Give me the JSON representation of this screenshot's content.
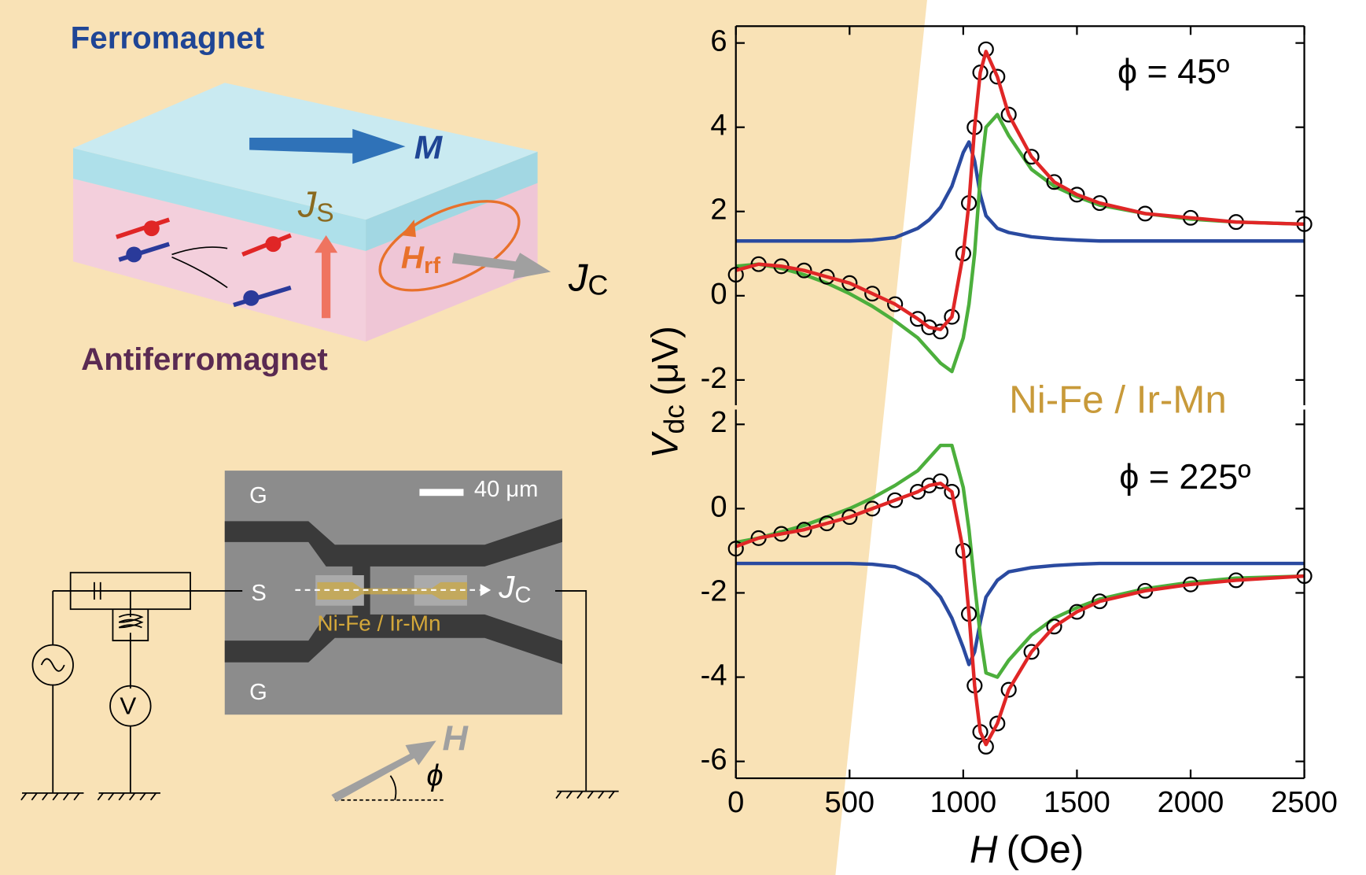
{
  "diagram": {
    "ferromagnet": "Ferromagnet",
    "m": "M",
    "js": {
      "main": "J",
      "sub": "S"
    },
    "hrf": {
      "main": "H",
      "sub": "rf"
    },
    "jc": {
      "main": "J",
      "sub": "C"
    },
    "antiferromagnet": "Antiferromagnet",
    "sem": {
      "g_top": "G",
      "s": "S",
      "g_bottom": "G",
      "scale": "40 μm",
      "jc": {
        "main": "J",
        "sub": "C"
      },
      "sample": "Ni-Fe / Ir-Mn"
    },
    "voltmeter": "V",
    "field": "H",
    "angle": "ϕ"
  },
  "sample_label": "Ni-Fe / Ir-Mn",
  "chart_data": [
    {
      "type": "line",
      "annotation": "ϕ = 45º",
      "ylabel": {
        "symbol": "V",
        "sub": "dc",
        "unit": "(μV)"
      },
      "xlim": [
        0,
        2500
      ],
      "ylim": [
        -2.6,
        6.4
      ],
      "yticks": [
        -2,
        0,
        2,
        4,
        6
      ],
      "x": [
        0,
        100,
        200,
        300,
        400,
        500,
        600,
        700,
        800,
        850,
        900,
        950,
        1000,
        1025,
        1050,
        1075,
        1100,
        1150,
        1200,
        1300,
        1400,
        1500,
        1600,
        1800,
        2000,
        2200,
        2500
      ],
      "series": [
        {
          "color": "#2a4aa0",
          "values": [
            1.3,
            1.3,
            1.3,
            1.3,
            1.3,
            1.3,
            1.32,
            1.38,
            1.6,
            1.8,
            2.1,
            2.6,
            3.4,
            3.65,
            3.2,
            2.4,
            1.9,
            1.6,
            1.5,
            1.4,
            1.35,
            1.32,
            1.3,
            1.3,
            1.3,
            1.3,
            1.3
          ]
        },
        {
          "color": "#4caf3c",
          "values": [
            0.7,
            0.75,
            0.65,
            0.5,
            0.3,
            0.05,
            -0.25,
            -0.6,
            -1.0,
            -1.3,
            -1.6,
            -1.8,
            -1.0,
            -0.2,
            1.0,
            2.8,
            4.0,
            4.3,
            3.8,
            3.0,
            2.6,
            2.35,
            2.15,
            1.95,
            1.82,
            1.75,
            1.7
          ]
        },
        {
          "color": "#000000",
          "marker": "circle",
          "values": [
            0.5,
            0.75,
            0.7,
            0.6,
            0.45,
            0.3,
            0.05,
            -0.2,
            -0.55,
            -0.75,
            -0.85,
            -0.5,
            1.0,
            2.2,
            4.0,
            5.3,
            5.85,
            5.2,
            4.3,
            3.3,
            2.7,
            2.4,
            2.2,
            1.95,
            1.85,
            1.75,
            1.7
          ]
        },
        {
          "color": "#e02626",
          "values": [
            0.6,
            0.75,
            0.7,
            0.6,
            0.45,
            0.3,
            0.05,
            -0.2,
            -0.55,
            -0.75,
            -0.8,
            -0.5,
            1.0,
            2.2,
            4.0,
            5.3,
            5.8,
            5.2,
            4.3,
            3.3,
            2.7,
            2.4,
            2.2,
            1.95,
            1.85,
            1.75,
            1.7
          ]
        }
      ]
    },
    {
      "type": "line",
      "annotation": "ϕ = 225º",
      "xlabel": {
        "symbol": "H",
        "unit": "(Oe)"
      },
      "xlim": [
        0,
        2500
      ],
      "xticks": [
        0,
        500,
        1000,
        1500,
        2000,
        2500
      ],
      "ylim": [
        -6.4,
        2.35
      ],
      "yticks": [
        -6,
        -4,
        -2,
        0,
        2
      ],
      "x": [
        0,
        100,
        200,
        300,
        400,
        500,
        600,
        700,
        800,
        850,
        900,
        950,
        1000,
        1025,
        1050,
        1075,
        1100,
        1150,
        1200,
        1300,
        1400,
        1500,
        1600,
        1800,
        2000,
        2200,
        2500
      ],
      "series": [
        {
          "color": "#2a4aa0",
          "values": [
            -1.3,
            -1.3,
            -1.3,
            -1.3,
            -1.3,
            -1.3,
            -1.32,
            -1.38,
            -1.6,
            -1.8,
            -2.1,
            -2.6,
            -3.3,
            -3.7,
            -3.4,
            -2.7,
            -2.1,
            -1.7,
            -1.5,
            -1.4,
            -1.35,
            -1.32,
            -1.3,
            -1.3,
            -1.3,
            -1.3,
            -1.3
          ]
        },
        {
          "color": "#4caf3c",
          "values": [
            -0.8,
            -0.7,
            -0.55,
            -0.4,
            -0.2,
            0.0,
            0.25,
            0.55,
            0.9,
            1.2,
            1.5,
            1.5,
            0.5,
            -0.5,
            -1.8,
            -3.0,
            -3.9,
            -4.0,
            -3.6,
            -3.0,
            -2.6,
            -2.35,
            -2.15,
            -1.9,
            -1.75,
            -1.65,
            -1.6
          ]
        },
        {
          "color": "#000000",
          "marker": "circle",
          "values": [
            -0.95,
            -0.7,
            -0.6,
            -0.5,
            -0.35,
            -0.2,
            0.0,
            0.2,
            0.4,
            0.55,
            0.65,
            0.4,
            -1.0,
            -2.5,
            -4.2,
            -5.3,
            -5.65,
            -5.1,
            -4.3,
            -3.4,
            -2.8,
            -2.45,
            -2.2,
            -1.95,
            -1.8,
            -1.7,
            -1.6
          ]
        },
        {
          "color": "#e02626",
          "values": [
            -0.9,
            -0.7,
            -0.6,
            -0.5,
            -0.35,
            -0.2,
            0.0,
            0.2,
            0.4,
            0.55,
            0.6,
            0.4,
            -1.0,
            -2.5,
            -4.2,
            -5.3,
            -5.6,
            -5.1,
            -4.3,
            -3.4,
            -2.8,
            -2.45,
            -2.2,
            -1.95,
            -1.8,
            -1.7,
            -1.6
          ]
        }
      ]
    }
  ]
}
